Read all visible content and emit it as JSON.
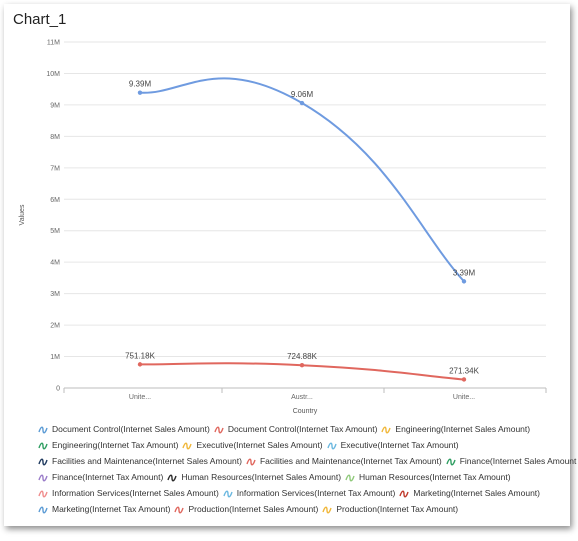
{
  "window": {
    "title": "Chart_1"
  },
  "chart_data": {
    "type": "line",
    "title": "Chart_1",
    "xlabel": "Country",
    "ylabel": "Values",
    "categories": [
      "Unite...",
      "Austr...",
      "Unite..."
    ],
    "y_ticks": [
      "0",
      "1M",
      "2M",
      "3M",
      "4M",
      "5M",
      "6M",
      "7M",
      "8M",
      "9M",
      "10M",
      "11M"
    ],
    "ylim": [
      0,
      11000000
    ],
    "grid": true,
    "legend_position": "bottom",
    "series": [
      {
        "name": "Document Control(Internet Sales Amount)",
        "color": "#6f9be0",
        "values": [
          9390000,
          9060000,
          3390000
        ],
        "labels": [
          "9.39M",
          "9.06M",
          "3.39M"
        ]
      },
      {
        "name": "Document Control(Internet Tax Amount)",
        "color": "#e0675e",
        "values": [
          751180,
          724880,
          271340
        ],
        "labels": [
          "751.18K",
          "724.88K",
          "271.34K"
        ]
      }
    ],
    "legend": [
      [
        {
          "label": "Document Control(Internet Sales Amount)",
          "color": "#5b9bd5"
        },
        {
          "label": "Document Control(Internet Tax Amount)",
          "color": "#e0675e"
        },
        {
          "label": "Engineering(Internet Sales Amount)",
          "color": "#f0b73a"
        }
      ],
      [
        {
          "label": "Engineering(Internet Tax Amount)",
          "color": "#2f9e62"
        },
        {
          "label": "Executive(Internet Sales Amount)",
          "color": "#f0b73a"
        },
        {
          "label": "Executive(Internet Tax Amount)",
          "color": "#6bb8e0"
        }
      ],
      [
        {
          "label": "Facilities and Maintenance(Internet Sales Amount)",
          "color": "#1f3a5f"
        },
        {
          "label": "Facilities and Maintenance(Internet Tax Amount)",
          "color": "#e0675e"
        },
        {
          "label": "Finance(Internet Sales Amount",
          "color": "#2f9e62"
        }
      ],
      [
        {
          "label": "Finance(Internet Tax Amount)",
          "color": "#9a7cc9"
        },
        {
          "label": "Human Resources(Internet Sales Amount)",
          "color": "#2b2b2b"
        },
        {
          "label": "Human Resources(Internet Tax Amount)",
          "color": "#8fc97a"
        }
      ],
      [
        {
          "label": "Information Services(Internet Sales Amount)",
          "color": "#f08c8c"
        },
        {
          "label": "Information Services(Internet Tax Amount)",
          "color": "#6bb8e0"
        },
        {
          "label": "Marketing(Internet Sales Amount)",
          "color": "#c0392b"
        }
      ],
      [
        {
          "label": "Marketing(Internet Tax Amount)",
          "color": "#5b9bd5"
        },
        {
          "label": "Production(Internet Sales Amount)",
          "color": "#e0675e"
        },
        {
          "label": "Production(Internet Tax Amount)",
          "color": "#f0b73a"
        }
      ]
    ]
  }
}
